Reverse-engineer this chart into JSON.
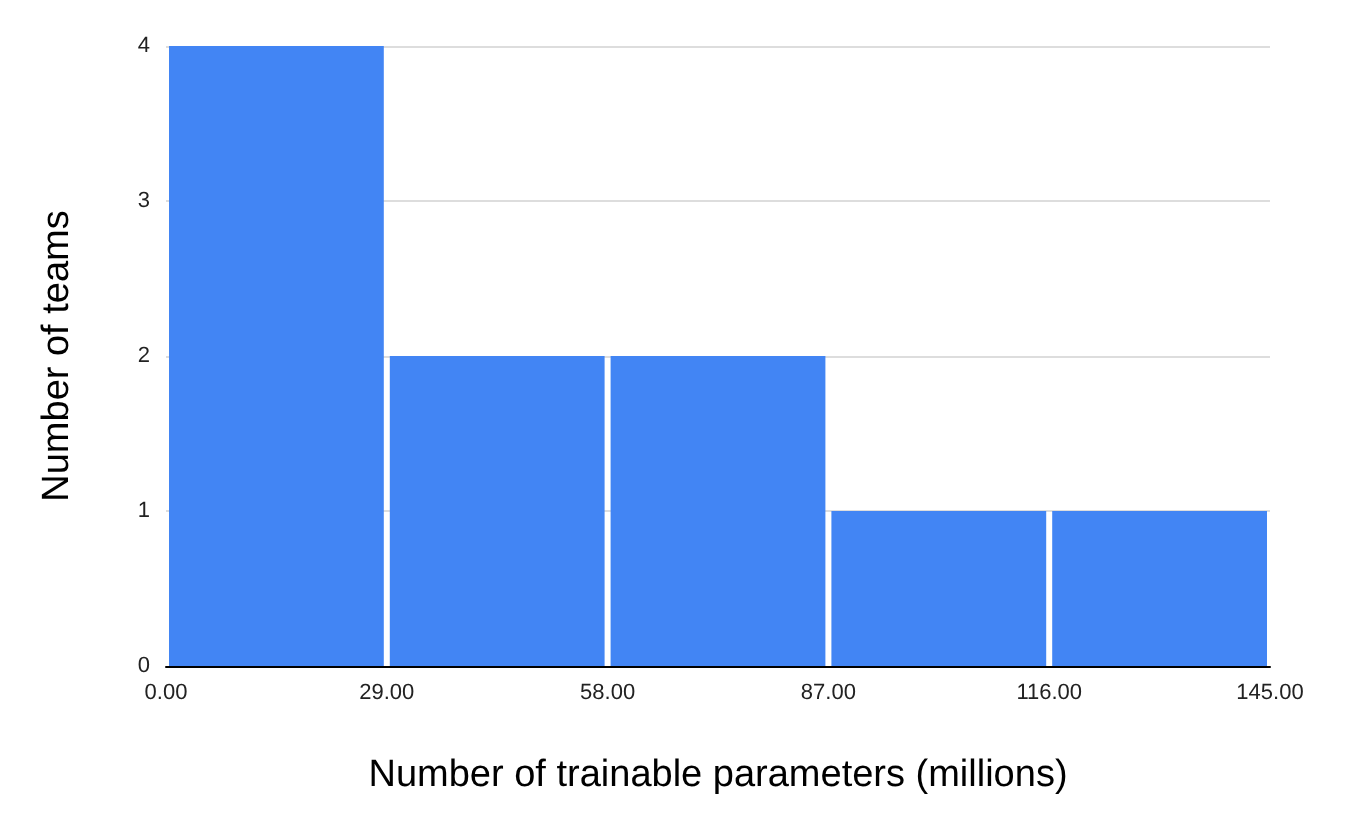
{
  "chart_data": {
    "type": "histogram",
    "xlabel": "Number of trainable parameters (millions)",
    "ylabel": "Number of teams",
    "bins": [
      0,
      29,
      58,
      87,
      116,
      145
    ],
    "values": [
      4,
      2,
      2,
      1,
      1
    ],
    "color": "#4285f4",
    "xlim": [
      0,
      145
    ],
    "xticks": [
      {
        "value": 0,
        "label": "0.00"
      },
      {
        "value": 29,
        "label": "29.00"
      },
      {
        "value": 58,
        "label": "58.00"
      },
      {
        "value": 87,
        "label": "87.00"
      },
      {
        "value": 116,
        "label": "116.00"
      },
      {
        "value": 145,
        "label": "145.00"
      }
    ],
    "ylim": [
      0,
      4
    ],
    "yticks": [
      0,
      1,
      2,
      3,
      4
    ],
    "grid": "y"
  }
}
